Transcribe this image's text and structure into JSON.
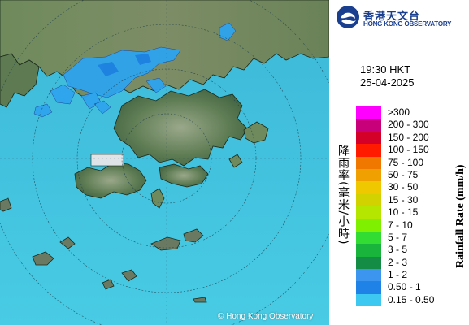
{
  "map": {
    "copyright": "© Hong Kong Observatory",
    "range_ring_label": "60",
    "colors": {
      "sea": "#3fc1dc",
      "land": "#5a7a52",
      "rain_light": "#2ea4ee",
      "rain_medium": "#1d7fe0"
    }
  },
  "logo": {
    "icon": "hko-logo-icon",
    "chinese": "香港天文台",
    "english": "HONG KONG OBSERVATORY"
  },
  "time": "19:30 HKT",
  "date": "25-04-2025",
  "legend": {
    "unit_chinese": "降雨率(毫米/小時)",
    "unit_english": "Rainfall Rate (mm/h)",
    "items": [
      {
        "label": ">300",
        "color": "#ff00ff"
      },
      {
        "label": "200 - 300",
        "color": "#c8007a"
      },
      {
        "label": "150 - 200",
        "color": "#d4002a"
      },
      {
        "label": "100 - 150",
        "color": "#ff1a00"
      },
      {
        "label": "75 - 100",
        "color": "#f07800"
      },
      {
        "label": "50 - 75",
        "color": "#f0a000"
      },
      {
        "label": "30 - 50",
        "color": "#f0c800"
      },
      {
        "label": "15 - 30",
        "color": "#d2d200"
      },
      {
        "label": "10 - 15",
        "color": "#b4e600"
      },
      {
        "label": "7 - 10",
        "color": "#7ef000"
      },
      {
        "label": "5 - 7",
        "color": "#32dc32"
      },
      {
        "label": "3 - 5",
        "color": "#18b43c"
      },
      {
        "label": "2 - 3",
        "color": "#148c46"
      },
      {
        "label": "1 - 2",
        "color": "#3c96f0"
      },
      {
        "label": "0.50 - 1",
        "color": "#1e82e6"
      },
      {
        "label": "0.15 - 0.50",
        "color": "#3cc8f0"
      }
    ]
  }
}
